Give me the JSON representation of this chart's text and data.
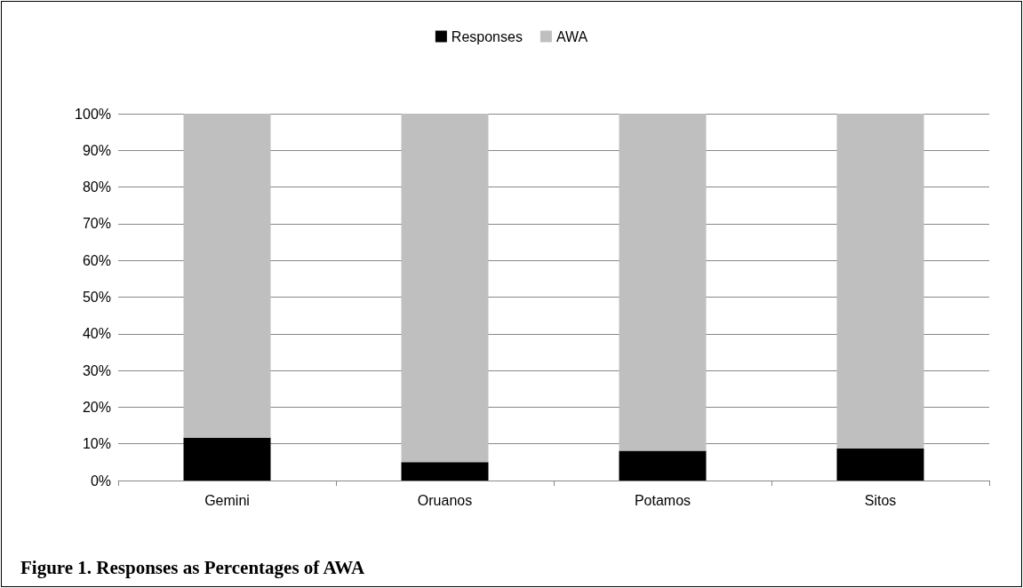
{
  "chart_data": {
    "type": "bar",
    "title": "Figure 1. Responses as Percentages of AWA",
    "stacked": true,
    "categories": [
      "Gemini",
      "Oruanos",
      "Potamos",
      "Sitos"
    ],
    "series": [
      {
        "name": "Responses",
        "color": "#000000",
        "values": [
          11.7,
          5,
          8.1,
          8.8
        ]
      },
      {
        "name": "AWA",
        "color": "#bfbfbf",
        "values": [
          88.3,
          95,
          91.9,
          91.2
        ]
      }
    ],
    "ylim": [
      0,
      100
    ],
    "yticks": [
      {
        "value": 0,
        "label": "0%"
      },
      {
        "value": 10,
        "label": "10%"
      },
      {
        "value": 20,
        "label": "20%"
      },
      {
        "value": 30,
        "label": "30%"
      },
      {
        "value": 40,
        "label": "40%"
      },
      {
        "value": 50,
        "label": "50%"
      },
      {
        "value": 60,
        "label": "60%"
      },
      {
        "value": 70,
        "label": "70%"
      },
      {
        "value": 80,
        "label": "80%"
      },
      {
        "value": 90,
        "label": "90%"
      },
      {
        "value": 100,
        "label": "100%"
      }
    ],
    "grid": "y",
    "legend": "top"
  }
}
